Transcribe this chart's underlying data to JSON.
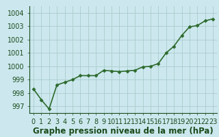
{
  "x": [
    0,
    1,
    2,
    3,
    4,
    5,
    6,
    7,
    8,
    9,
    10,
    11,
    12,
    13,
    14,
    15,
    16,
    17,
    18,
    19,
    20,
    21,
    22,
    23
  ],
  "y": [
    998.3,
    997.5,
    996.8,
    998.6,
    998.8,
    999.0,
    999.3,
    999.3,
    999.3,
    999.7,
    999.65,
    999.6,
    999.65,
    999.7,
    999.95,
    1000.0,
    1000.2,
    1001.0,
    1001.5,
    1002.3,
    1002.95,
    1003.05,
    1003.4,
    1003.55
  ],
  "line_color": "#2d6a2d",
  "marker": "D",
  "marker_size": 2.5,
  "bg_color": "#cce8ee",
  "grid_color": "#aacccc",
  "xlabel": "Graphe pression niveau de la mer (hPa)",
  "xlabel_fontsize": 8.5,
  "xlabel_color": "#1a4a1a",
  "xlabel_bold": true,
  "ylim": [
    996.5,
    1004.5
  ],
  "xlim": [
    -0.5,
    23.5
  ],
  "yticks": [
    997,
    998,
    999,
    1000,
    1001,
    1002,
    1003,
    1004
  ],
  "xtick_labels": [
    "0",
    "1",
    "2",
    "3",
    "4",
    "5",
    "6",
    "7",
    "8",
    "9",
    "10",
    "11",
    "12",
    "13",
    "14",
    "15",
    "16",
    "17",
    "18",
    "19",
    "20",
    "21",
    "22",
    "23"
  ],
  "tick_fontsize": 7,
  "linewidth": 1.2
}
